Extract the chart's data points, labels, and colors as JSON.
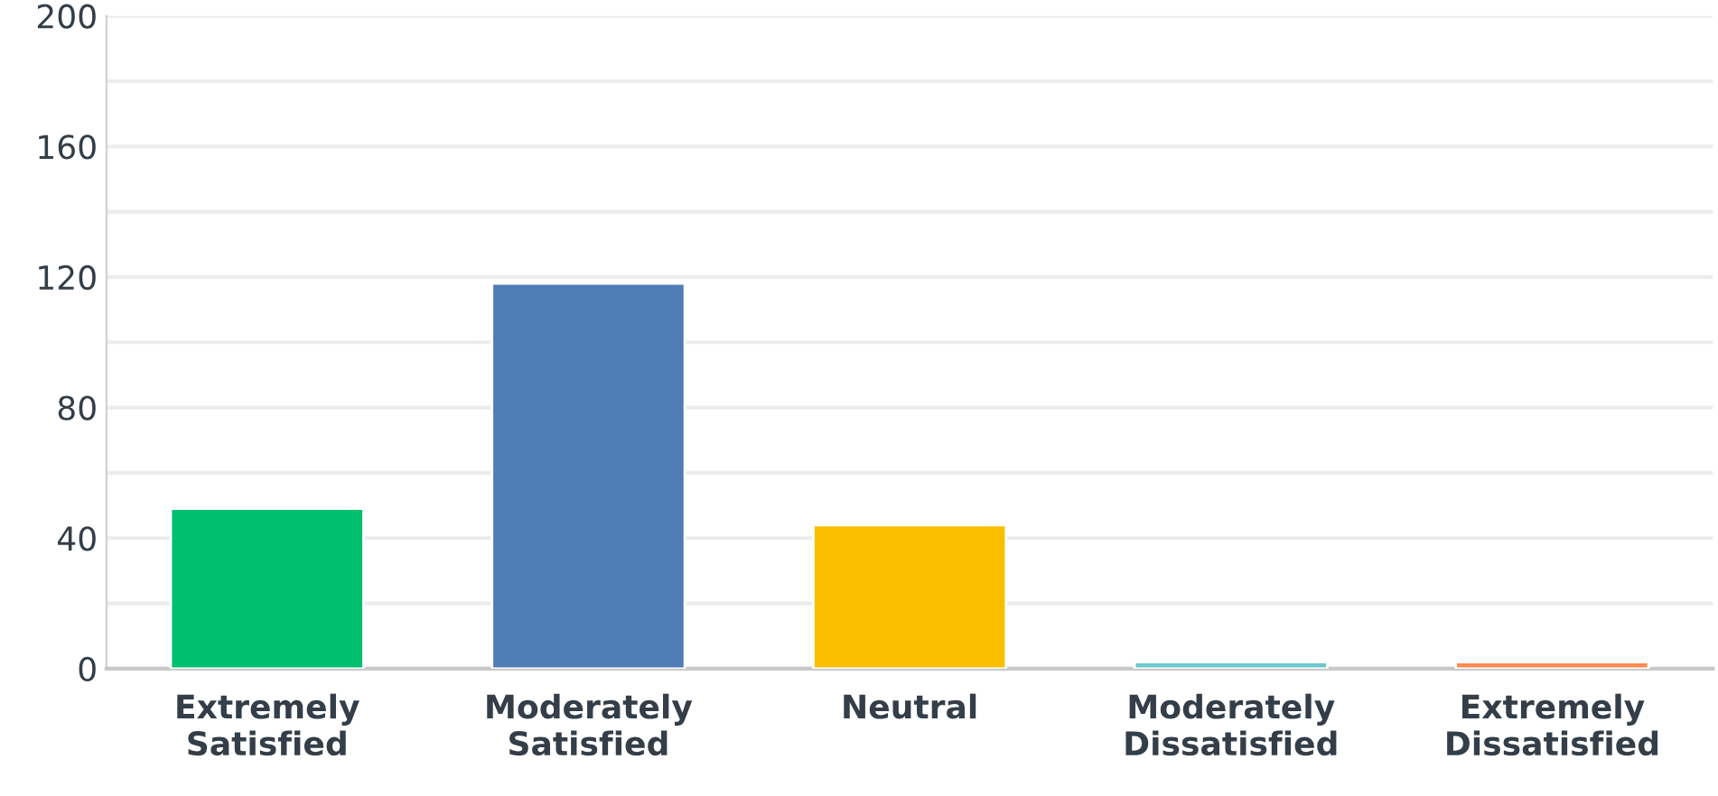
{
  "chart_data": {
    "type": "bar",
    "categories": [
      "Extremely\nSatisfied",
      "Moderately\nSatisfied",
      "Neutral",
      "Moderately\nDissatisfied",
      "Extremely\nDissatisfied"
    ],
    "values": [
      49,
      118,
      44,
      2,
      2
    ],
    "colors": [
      "#00bf6f",
      "#507cb6",
      "#f9be00",
      "#6bc8cd",
      "#ff8b4f"
    ],
    "ylim": [
      0,
      200
    ],
    "yticks": [
      0,
      {
        "value": 20,
        "label": null
      },
      40,
      {
        "value": 60,
        "label": null
      },
      80,
      {
        "value": 100,
        "label": null
      },
      120,
      {
        "value": 140,
        "label": null
      },
      160,
      {
        "value": 180,
        "label": null
      },
      200
    ],
    "grid": "y"
  }
}
